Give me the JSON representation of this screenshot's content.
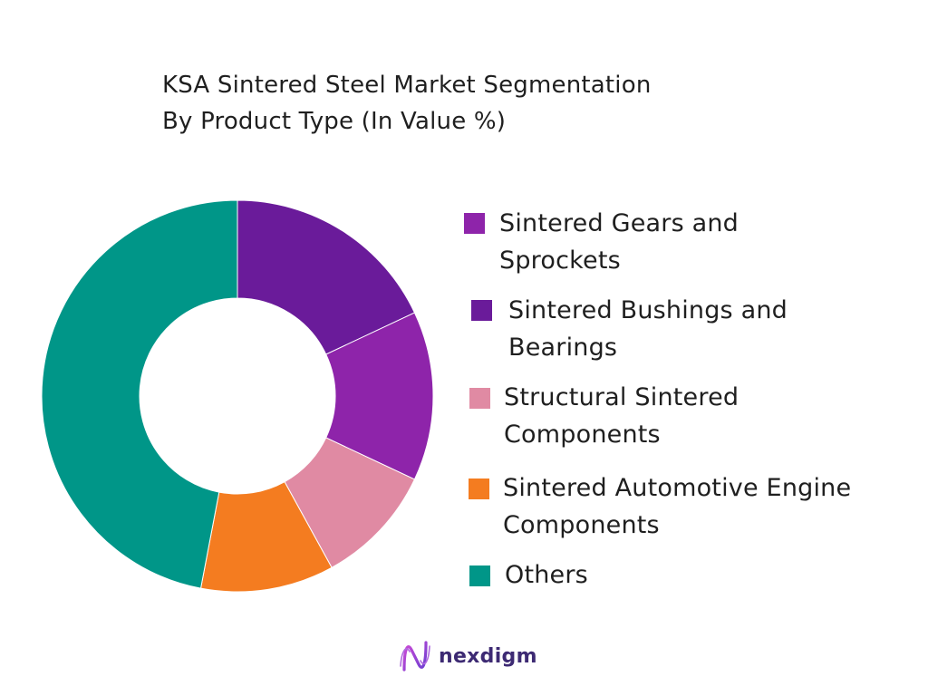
{
  "chart_data": {
    "type": "pie",
    "style": "donut",
    "title_lines": [
      "KSA Sintered Steel Market Segmentation",
      "By Product Type (In Value %)"
    ],
    "series": [
      {
        "label_lines": [
          "Sintered Gears and",
          "Sprockets"
        ],
        "value": 18,
        "color": "#6a1b9a"
      },
      {
        "label_lines": [
          "Sintered Bushings and",
          "Bearings"
        ],
        "value": 14,
        "color": "#8e24aa"
      },
      {
        "label_lines": [
          "Structural Sintered",
          "Components"
        ],
        "value": 10,
        "color": "#e08aa3"
      },
      {
        "label_lines": [
          "Sintered Automotive Engine",
          "Components"
        ],
        "value": 11,
        "color": "#f47c20"
      },
      {
        "label_lines": [
          "Others"
        ],
        "value": 47,
        "color": "#009688"
      }
    ],
    "legend_swatch_colors": [
      "#8e24aa",
      "#6a1b9a",
      "#e08aa3",
      "#f47c20",
      "#009688"
    ],
    "legend_placement": "right"
  },
  "logo": {
    "text": "nexdigm"
  }
}
